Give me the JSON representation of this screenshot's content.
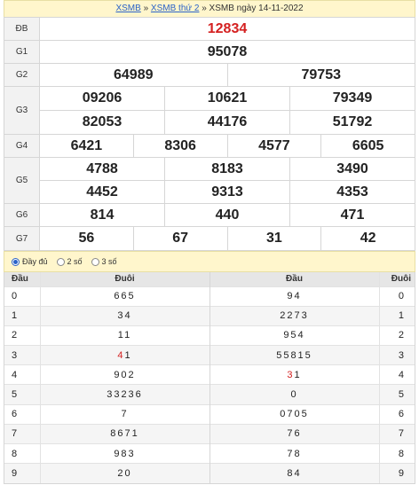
{
  "breadcrumb": {
    "home": "XSMB",
    "sep1": " » ",
    "day": "XSMB thứ 2",
    "sep2": " » ",
    "current": "XSMB ngày 14-11-2022"
  },
  "prizes": {
    "db": {
      "label": "ĐB",
      "values": [
        "12834"
      ]
    },
    "g1": {
      "label": "G1",
      "values": [
        "95078"
      ]
    },
    "g2": {
      "label": "G2",
      "values": [
        "64989",
        "79753"
      ]
    },
    "g3": {
      "label": "G3",
      "values": [
        "09206",
        "10621",
        "79349",
        "82053",
        "44176",
        "51792"
      ]
    },
    "g4": {
      "label": "G4",
      "values": [
        "6421",
        "8306",
        "4577",
        "6605"
      ]
    },
    "g5": {
      "label": "G5",
      "values": [
        "4788",
        "8183",
        "3490",
        "4452",
        "9313",
        "4353"
      ]
    },
    "g6": {
      "label": "G6",
      "values": [
        "814",
        "440",
        "471"
      ]
    },
    "g7": {
      "label": "G7",
      "values": [
        "56",
        "67",
        "31",
        "42"
      ]
    }
  },
  "options": {
    "full": "Đầy đủ",
    "two": "2 số",
    "three": "3 số",
    "selected": "full"
  },
  "loto": {
    "left_head": "Đầu",
    "left_tail": "Đuôi",
    "right_head": "Đầu",
    "right_tail": "Đuôi",
    "rows": [
      {
        "dau": "0",
        "duoi": "665",
        "duoi_red": "",
        "dau2": "94",
        "dau2_red": "",
        "duoi2": "0"
      },
      {
        "dau": "1",
        "duoi": "34",
        "duoi_red": "",
        "dau2": "2273",
        "dau2_red": "",
        "duoi2": "1"
      },
      {
        "dau": "2",
        "duoi": "11",
        "duoi_red": "",
        "dau2": "954",
        "dau2_red": "",
        "duoi2": "2"
      },
      {
        "dau": "3",
        "duoi": "1",
        "duoi_red": "4",
        "dau2": "55815",
        "dau2_red": "",
        "duoi2": "3"
      },
      {
        "dau": "4",
        "duoi": "902",
        "duoi_red": "",
        "dau2": "1",
        "dau2_red": "3",
        "duoi2": "4"
      },
      {
        "dau": "5",
        "duoi": "33236",
        "duoi_red": "",
        "dau2": "0",
        "dau2_red": "",
        "duoi2": "5"
      },
      {
        "dau": "6",
        "duoi": "7",
        "duoi_red": "",
        "dau2": "0705",
        "dau2_red": "",
        "duoi2": "6"
      },
      {
        "dau": "7",
        "duoi": "8671",
        "duoi_red": "",
        "dau2": "76",
        "dau2_red": "",
        "duoi2": "7"
      },
      {
        "dau": "8",
        "duoi": "983",
        "duoi_red": "",
        "dau2": "78",
        "dau2_red": "",
        "duoi2": "8"
      },
      {
        "dau": "9",
        "duoi": "20",
        "duoi_red": "",
        "dau2": "84",
        "dau2_red": "",
        "duoi2": "9"
      }
    ]
  },
  "colors": {
    "accent_red": "#d42020",
    "link_blue": "#2a63c8",
    "header_bg": "#fff6cc"
  }
}
